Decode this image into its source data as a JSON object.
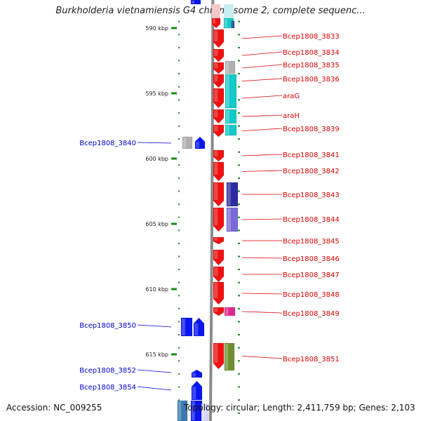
{
  "title": "Burkholderia vietnamiensis G4 chromosome 2, complete sequenc...",
  "accession": "Accession: NC_009255",
  "topology": "Topology: circular; Length: 2,411,759 bp; Genes: 2,103",
  "colors": {
    "backbone": "#8a8a8a",
    "tick": "#1a8a1a",
    "red": "#ee1111",
    "blue": "#0a16ee",
    "gray": "#b0b0b0",
    "cyan": "#16c8c8",
    "navy": "#2c2ca0",
    "purple": "#7a6ad8",
    "magenta": "#e0288c",
    "olive": "#6e9030",
    "label_red": "#dd0000",
    "label_blue": "#0000cc"
  },
  "scale": {
    "unit": "kbp",
    "ticks": [
      {
        "label": "590 kbp",
        "value": 590
      },
      {
        "label": "595 kbp",
        "value": 595
      },
      {
        "label": "600 kbp",
        "value": 600
      },
      {
        "label": "605 kbp",
        "value": 605
      },
      {
        "label": "610 kbp",
        "value": 610
      },
      {
        "label": "615 kbp",
        "value": 615
      }
    ]
  },
  "genes_right": [
    {
      "label": "Bcep1808_3833"
    },
    {
      "label": "Bcep1808_3834"
    },
    {
      "label": "Bcep1808_3835"
    },
    {
      "label": "Bcep1808_3836"
    },
    {
      "label": "araG"
    },
    {
      "label": "araH"
    },
    {
      "label": "Bcep1808_3839"
    },
    {
      "label": "Bcep1808_3841"
    },
    {
      "label": "Bcep1808_3842"
    },
    {
      "label": "Bcep1808_3843"
    },
    {
      "label": "Bcep1808_3844"
    },
    {
      "label": "Bcep1808_3845"
    },
    {
      "label": "Bcep1808_3846"
    },
    {
      "label": "Bcep1808_3847"
    },
    {
      "label": "Bcep1808_3848"
    },
    {
      "label": "Bcep1808_3849"
    },
    {
      "label": "Bcep1808_3851"
    }
  ],
  "genes_left": [
    {
      "label": "Bcep1808_3840"
    },
    {
      "label": "Bcep1808_3850"
    },
    {
      "label": "Bcep1808_3852"
    },
    {
      "label": "Bcep1808_3854"
    }
  ]
}
